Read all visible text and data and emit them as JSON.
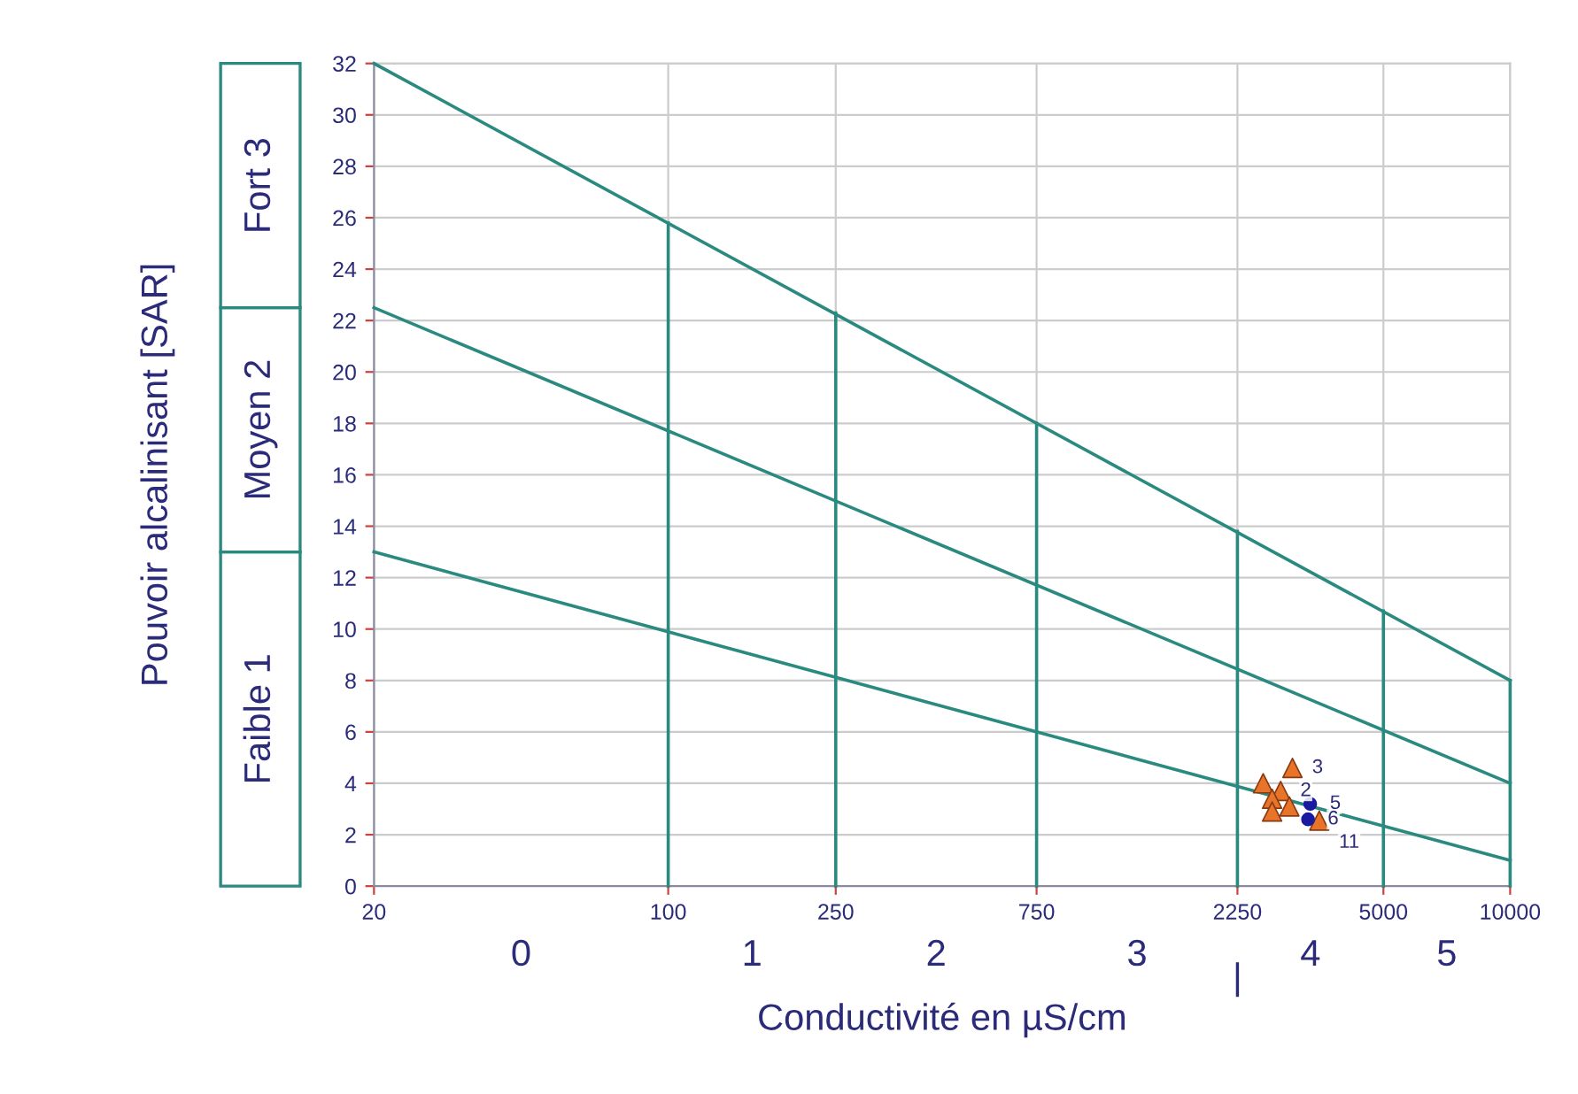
{
  "chart_data": {
    "type": "line",
    "xlabel": "Conductivité en µS/cm",
    "ylabel": "Pouvoir alcalinisant [SAR]",
    "log": "x",
    "xlim": [
      20,
      10000
    ],
    "ylim": [
      0,
      32
    ],
    "xticks": [
      20,
      100,
      250,
      750,
      2250,
      5000,
      10000
    ],
    "yticks": [
      0,
      2,
      4,
      6,
      8,
      10,
      12,
      14,
      16,
      18,
      20,
      22,
      24,
      26,
      28,
      30,
      32
    ],
    "grid": true,
    "series": [
      {
        "color": "#2a8a80",
        "x": [
          20,
          10000
        ],
        "values": [
          13,
          1
        ]
      },
      {
        "color": "#2a8a80",
        "x": [
          20,
          10000
        ],
        "values": [
          22.5,
          4
        ]
      },
      {
        "color": "#2a8a80",
        "x": [
          20,
          10000
        ],
        "values": [
          32,
          8
        ]
      },
      {
        "color": "#2a8a80",
        "x": [
          100,
          100
        ],
        "values": [
          0,
          25.8
        ]
      },
      {
        "color": "#2a8a80",
        "x": [
          250,
          250
        ],
        "values": [
          0,
          22.3
        ]
      },
      {
        "color": "#2a8a80",
        "x": [
          750,
          750
        ],
        "values": [
          0,
          18
        ]
      },
      {
        "color": "#2a8a80",
        "x": [
          2250,
          2250
        ],
        "values": [
          0,
          13.8
        ]
      },
      {
        "color": "#2a8a80",
        "x": [
          5000,
          5000
        ],
        "values": [
          0,
          10.7
        ]
      },
      {
        "color": "#2a8a80",
        "x": [
          10000,
          10000
        ],
        "values": [
          0,
          8
        ]
      },
      {
        "type": "scatter",
        "marker": "triangle",
        "color": "#e8742a",
        "x": [
          3040,
          2590,
          2850,
          2720,
          2720,
          2990,
          3520
        ],
        "values": [
          4.6,
          4.0,
          3.7,
          3.4,
          2.9,
          3.1,
          2.55
        ]
      },
      {
        "type": "scatter",
        "marker": "circle",
        "color": "#1a1aa0",
        "x": [
          3350,
          3310
        ],
        "values": [
          3.2,
          2.6
        ]
      }
    ],
    "annotations": [
      "Faible 1",
      "Moyen 2",
      "Fort 3",
      "0",
      "1",
      "2",
      "3",
      "4",
      "5",
      {
        "text": "|",
        "x": 2250,
        "y": 0
      },
      {
        "text": "3",
        "x": 3040,
        "y": 4.6
      },
      {
        "text": "2",
        "x": 2850,
        "y": 3.7
      },
      {
        "text": "5",
        "x": 3350,
        "y": 3.2
      },
      {
        "text": "6",
        "x": 3310,
        "y": 2.6
      },
      {
        "text": "11",
        "x": 3520,
        "y": 2.55
      }
    ]
  }
}
